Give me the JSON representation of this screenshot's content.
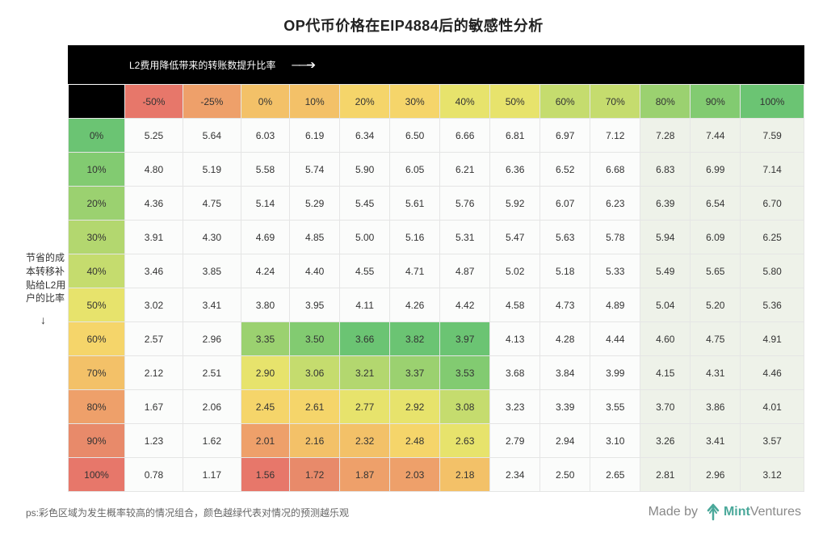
{
  "title": "OP代币价格在EIP4884后的敏感性分析",
  "x_axis_label": "L2费用降低带来的转账数提升比率",
  "y_axis_label": "节省的成本转移补贴给L2用户的比率",
  "arrow_right": "──➔",
  "arrow_down": "↓",
  "col_headers": [
    "-50%",
    "-25%",
    "0%",
    "10%",
    "20%",
    "30%",
    "40%",
    "50%",
    "60%",
    "70%",
    "80%",
    "90%",
    "100%"
  ],
  "col_header_colors": [
    "#e7776a",
    "#eea06a",
    "#f3c168",
    "#f3c168",
    "#f5d56a",
    "#f5d56a",
    "#e7e36c",
    "#e7e36c",
    "#c5dc6e",
    "#c5dc6e",
    "#9bd170",
    "#82cb71",
    "#6bc473"
  ],
  "row_headers": [
    "0%",
    "10%",
    "20%",
    "30%",
    "40%",
    "50%",
    "60%",
    "70%",
    "80%",
    "90%",
    "100%"
  ],
  "row_header_colors": [
    "#6bc473",
    "#82cb71",
    "#9bd170",
    "#b3d76f",
    "#c5dc6e",
    "#e7e36c",
    "#f5d56a",
    "#f3c168",
    "#eea06a",
    "#e88a6a",
    "#e7776a"
  ],
  "cells": [
    [
      {
        "v": "5.25"
      },
      {
        "v": "5.64"
      },
      {
        "v": "6.03"
      },
      {
        "v": "6.19"
      },
      {
        "v": "6.34"
      },
      {
        "v": "6.50"
      },
      {
        "v": "6.66"
      },
      {
        "v": "6.81"
      },
      {
        "v": "6.97"
      },
      {
        "v": "7.12"
      },
      {
        "v": "7.28",
        "c": "#eef2e9"
      },
      {
        "v": "7.44",
        "c": "#eef2e9"
      },
      {
        "v": "7.59",
        "c": "#eef2e9"
      }
    ],
    [
      {
        "v": "4.80"
      },
      {
        "v": "5.19"
      },
      {
        "v": "5.58"
      },
      {
        "v": "5.74"
      },
      {
        "v": "5.90"
      },
      {
        "v": "6.05"
      },
      {
        "v": "6.21"
      },
      {
        "v": "6.36"
      },
      {
        "v": "6.52"
      },
      {
        "v": "6.68"
      },
      {
        "v": "6.83",
        "c": "#eef2e9"
      },
      {
        "v": "6.99",
        "c": "#eef2e9"
      },
      {
        "v": "7.14",
        "c": "#eef2e9"
      }
    ],
    [
      {
        "v": "4.36"
      },
      {
        "v": "4.75"
      },
      {
        "v": "5.14"
      },
      {
        "v": "5.29"
      },
      {
        "v": "5.45"
      },
      {
        "v": "5.61"
      },
      {
        "v": "5.76"
      },
      {
        "v": "5.92"
      },
      {
        "v": "6.07"
      },
      {
        "v": "6.23"
      },
      {
        "v": "6.39",
        "c": "#eef2e9"
      },
      {
        "v": "6.54",
        "c": "#eef2e9"
      },
      {
        "v": "6.70",
        "c": "#eef2e9"
      }
    ],
    [
      {
        "v": "3.91"
      },
      {
        "v": "4.30"
      },
      {
        "v": "4.69"
      },
      {
        "v": "4.85"
      },
      {
        "v": "5.00"
      },
      {
        "v": "5.16"
      },
      {
        "v": "5.31"
      },
      {
        "v": "5.47"
      },
      {
        "v": "5.63"
      },
      {
        "v": "5.78"
      },
      {
        "v": "5.94",
        "c": "#eef2e9"
      },
      {
        "v": "6.09",
        "c": "#eef2e9"
      },
      {
        "v": "6.25",
        "c": "#eef2e9"
      }
    ],
    [
      {
        "v": "3.46"
      },
      {
        "v": "3.85"
      },
      {
        "v": "4.24"
      },
      {
        "v": "4.40"
      },
      {
        "v": "4.55"
      },
      {
        "v": "4.71"
      },
      {
        "v": "4.87"
      },
      {
        "v": "5.02"
      },
      {
        "v": "5.18"
      },
      {
        "v": "5.33"
      },
      {
        "v": "5.49",
        "c": "#eef2e9"
      },
      {
        "v": "5.65",
        "c": "#eef2e9"
      },
      {
        "v": "5.80",
        "c": "#eef2e9"
      }
    ],
    [
      {
        "v": "3.02"
      },
      {
        "v": "3.41"
      },
      {
        "v": "3.80"
      },
      {
        "v": "3.95"
      },
      {
        "v": "4.11"
      },
      {
        "v": "4.26"
      },
      {
        "v": "4.42"
      },
      {
        "v": "4.58"
      },
      {
        "v": "4.73"
      },
      {
        "v": "4.89"
      },
      {
        "v": "5.04",
        "c": "#eef2e9"
      },
      {
        "v": "5.20",
        "c": "#eef2e9"
      },
      {
        "v": "5.36",
        "c": "#eef2e9"
      }
    ],
    [
      {
        "v": "2.57"
      },
      {
        "v": "2.96"
      },
      {
        "v": "3.35",
        "c": "#9bd170"
      },
      {
        "v": "3.50",
        "c": "#82cb71"
      },
      {
        "v": "3.66",
        "c": "#6bc473"
      },
      {
        "v": "3.82",
        "c": "#6bc473"
      },
      {
        "v": "3.97",
        "c": "#6bc473"
      },
      {
        "v": "4.13"
      },
      {
        "v": "4.28"
      },
      {
        "v": "4.44"
      },
      {
        "v": "4.60",
        "c": "#eef2e9"
      },
      {
        "v": "4.75",
        "c": "#eef2e9"
      },
      {
        "v": "4.91",
        "c": "#eef2e9"
      }
    ],
    [
      {
        "v": "2.12"
      },
      {
        "v": "2.51"
      },
      {
        "v": "2.90",
        "c": "#e7e36c"
      },
      {
        "v": "3.06",
        "c": "#c5dc6e"
      },
      {
        "v": "3.21",
        "c": "#b3d76f"
      },
      {
        "v": "3.37",
        "c": "#9bd170"
      },
      {
        "v": "3.53",
        "c": "#82cb71"
      },
      {
        "v": "3.68"
      },
      {
        "v": "3.84"
      },
      {
        "v": "3.99"
      },
      {
        "v": "4.15",
        "c": "#eef2e9"
      },
      {
        "v": "4.31",
        "c": "#eef2e9"
      },
      {
        "v": "4.46",
        "c": "#eef2e9"
      }
    ],
    [
      {
        "v": "1.67"
      },
      {
        "v": "2.06"
      },
      {
        "v": "2.45",
        "c": "#f5d56a"
      },
      {
        "v": "2.61",
        "c": "#f5d56a"
      },
      {
        "v": "2.77",
        "c": "#e7e36c"
      },
      {
        "v": "2.92",
        "c": "#e7e36c"
      },
      {
        "v": "3.08",
        "c": "#c5dc6e"
      },
      {
        "v": "3.23"
      },
      {
        "v": "3.39"
      },
      {
        "v": "3.55"
      },
      {
        "v": "3.70",
        "c": "#eef2e9"
      },
      {
        "v": "3.86",
        "c": "#eef2e9"
      },
      {
        "v": "4.01",
        "c": "#eef2e9"
      }
    ],
    [
      {
        "v": "1.23"
      },
      {
        "v": "1.62"
      },
      {
        "v": "2.01",
        "c": "#eea06a"
      },
      {
        "v": "2.16",
        "c": "#f3c168"
      },
      {
        "v": "2.32",
        "c": "#f3c168"
      },
      {
        "v": "2.48",
        "c": "#f5d56a"
      },
      {
        "v": "2.63",
        "c": "#e7e36c"
      },
      {
        "v": "2.79"
      },
      {
        "v": "2.94"
      },
      {
        "v": "3.10"
      },
      {
        "v": "3.26",
        "c": "#eef2e9"
      },
      {
        "v": "3.41",
        "c": "#eef2e9"
      },
      {
        "v": "3.57",
        "c": "#eef2e9"
      }
    ],
    [
      {
        "v": "0.78"
      },
      {
        "v": "1.17"
      },
      {
        "v": "1.56",
        "c": "#e7776a"
      },
      {
        "v": "1.72",
        "c": "#e88a6a"
      },
      {
        "v": "1.87",
        "c": "#eea06a"
      },
      {
        "v": "2.03",
        "c": "#eea06a"
      },
      {
        "v": "2.18",
        "c": "#f3c168"
      },
      {
        "v": "2.34"
      },
      {
        "v": "2.50"
      },
      {
        "v": "2.65"
      },
      {
        "v": "2.81",
        "c": "#eef2e9"
      },
      {
        "v": "2.96",
        "c": "#eef2e9"
      },
      {
        "v": "3.12",
        "c": "#eef2e9"
      }
    ]
  ],
  "cell_default_bg": "#fbfcfb",
  "footnote": "ps:彩色区域为发生概率较高的情况组合，颜色越绿代表对情况的预测越乐观",
  "brand": {
    "made": "Made by",
    "name1": "Mint",
    "name2": "Ventures"
  },
  "logo_color": "#4aa89a"
}
